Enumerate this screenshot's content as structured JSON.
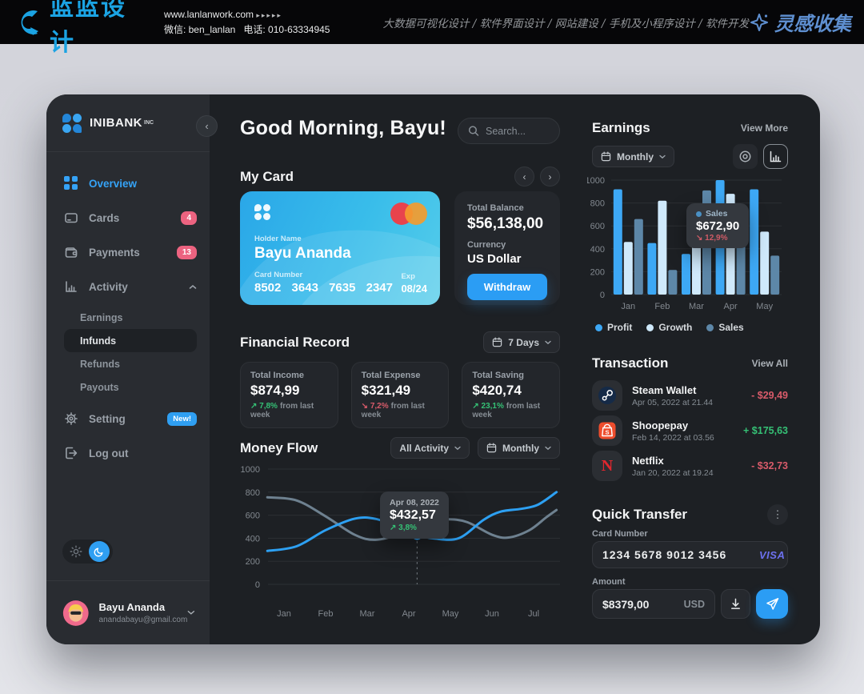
{
  "banner": {
    "logo_text": "蓝蓝设计",
    "site": "www.lanlanwork.com",
    "site_arrows": "▸▸▸▸▸",
    "wechat": "微信: ben_lanlan",
    "phone": "电话: 010-63334945",
    "services": "大数据可视化设计 / 软件界面设计 / 网站建设 / 手机及小程序设计 / 软件开发",
    "collect": "灵感收集"
  },
  "sidebar": {
    "brand": "INIBANK",
    "brand_suffix": "INC",
    "items": [
      {
        "label": "Overview",
        "active": true
      },
      {
        "label": "Cards",
        "badge": "4"
      },
      {
        "label": "Payments",
        "badge": "13"
      },
      {
        "label": "Activity",
        "expanded": true
      }
    ],
    "activity_children": [
      {
        "label": "Earnings"
      },
      {
        "label": "Infunds",
        "selected": true
      },
      {
        "label": "Refunds"
      },
      {
        "label": "Payouts"
      }
    ],
    "setting_label": "Setting",
    "setting_badge": "New!",
    "logout_label": "Log out",
    "user": {
      "name": "Bayu Ananda",
      "email": "anandabayu@gmail.com"
    }
  },
  "main": {
    "greeting": "Good Morning, Bayu!",
    "search_placeholder": "Search...",
    "my_card": {
      "title": "My Card",
      "holder_label": "Holder Name",
      "holder": "Bayu Ananda",
      "number_label": "Card Number",
      "number": "8502 3643 7635 2347",
      "exp_label": "Exp",
      "exp": "08/24"
    },
    "balance": {
      "label": "Total Balance",
      "value": "$56,138,00",
      "currency_label": "Currency",
      "currency": "US Dollar",
      "withdraw": "Withdraw"
    },
    "financial_record": {
      "title": "Financial Record",
      "period": "7 Days",
      "cards": [
        {
          "label": "Total Income",
          "value": "$874,99",
          "delta": "↗ 7,8%",
          "suffix": "from last week",
          "dir": "up"
        },
        {
          "label": "Total Expense",
          "value": "$321,49",
          "delta": "↘ 7,2%",
          "suffix": "from last week",
          "dir": "down"
        },
        {
          "label": "Total Saving",
          "value": "$420,74",
          "delta": "↗ 23,1%",
          "suffix": "from last week",
          "dir": "up"
        }
      ]
    },
    "money_flow": {
      "title": "Money Flow",
      "filter_activity": "All Activity",
      "filter_period": "Monthly"
    }
  },
  "right": {
    "earnings": {
      "title": "Earnings",
      "view_more": "View More",
      "period": "Monthly"
    },
    "transaction": {
      "title": "Transaction",
      "view_all": "View All",
      "rows": [
        {
          "name": "Steam Wallet",
          "date": "Apr 05, 2022 at 21.44",
          "amount": "- $29,49",
          "dir": "down",
          "icon": "steam"
        },
        {
          "name": "Shoopepay",
          "date": "Feb 14, 2022 at 03.56",
          "amount": "+ $175,63",
          "dir": "up",
          "icon": "shopee"
        },
        {
          "name": "Netflix",
          "date": "Jan 20, 2022 at 19.24",
          "amount": "- $32,73",
          "dir": "down",
          "icon": "netflix"
        }
      ]
    },
    "quick_transfer": {
      "title": "Quick Transfer",
      "card_number_label": "Card Number",
      "card_number": "1234 5678 9012 3456",
      "card_brand": "VISA",
      "amount_label": "Amount",
      "amount": "$8379,00",
      "currency": "USD"
    }
  },
  "chart_data": [
    {
      "id": "money-flow",
      "type": "line",
      "title": "Money Flow",
      "x_labels": [
        "Jan",
        "Feb",
        "Mar",
        "Apr",
        "May",
        "Jun",
        "Jul"
      ],
      "y_ticks": [
        0,
        200,
        400,
        600,
        800,
        1000
      ],
      "ylim": [
        0,
        1000
      ],
      "grid": true,
      "legend_position": "none",
      "series": [
        {
          "name": "inflow",
          "color": "#2da0f2",
          "points": [
            [
              -0.4,
              290
            ],
            [
              0.3,
              330
            ],
            [
              1,
              470
            ],
            [
              1.7,
              570
            ],
            [
              2.2,
              568
            ],
            [
              2.8,
              490
            ],
            [
              3.2,
              430
            ],
            [
              3.6,
              398
            ],
            [
              4.2,
              400
            ],
            [
              4.8,
              560
            ],
            [
              5.2,
              630
            ],
            [
              5.7,
              655
            ],
            [
              6.1,
              690
            ],
            [
              6.55,
              800
            ]
          ]
        },
        {
          "name": "outflow",
          "color": "#6e8190",
          "points": [
            [
              -0.4,
              755
            ],
            [
              0.3,
              728
            ],
            [
              1,
              590
            ],
            [
              1.7,
              430
            ],
            [
              2.2,
              386
            ],
            [
              2.8,
              440
            ],
            [
              3.4,
              545
            ],
            [
              3.9,
              565
            ],
            [
              4.4,
              540
            ],
            [
              5,
              430
            ],
            [
              5.4,
              406
            ],
            [
              5.9,
              470
            ],
            [
              6.3,
              580
            ],
            [
              6.55,
              645
            ]
          ]
        }
      ],
      "marker": {
        "x": 3.2,
        "value": 430
      },
      "tooltip": {
        "date": "Apr 08, 2022",
        "amount": "$432,57",
        "delta": "↗ 3,8%"
      }
    },
    {
      "id": "earnings",
      "type": "bar",
      "title": "Earnings",
      "categories": [
        "Jan",
        "Feb",
        "Mar",
        "Apr",
        "May"
      ],
      "y_ticks": [
        0,
        200,
        400,
        600,
        800,
        1000
      ],
      "ylim": [
        0,
        1000
      ],
      "grid": true,
      "legend_position": "bottom",
      "series": [
        {
          "name": "Profit",
          "color": "#3da8f5",
          "values": [
            920,
            450,
            355,
            1000,
            920
          ]
        },
        {
          "name": "Growth",
          "color": "#cfe9fb",
          "values": [
            460,
            820,
            450,
            880,
            550
          ]
        },
        {
          "name": "Sales",
          "color": "#5d87a8",
          "values": [
            660,
            215,
            910,
            740,
            340
          ]
        }
      ],
      "tooltip": {
        "series": "Sales",
        "amount": "$672,90",
        "delta": "↘ 12,9%"
      }
    }
  ]
}
